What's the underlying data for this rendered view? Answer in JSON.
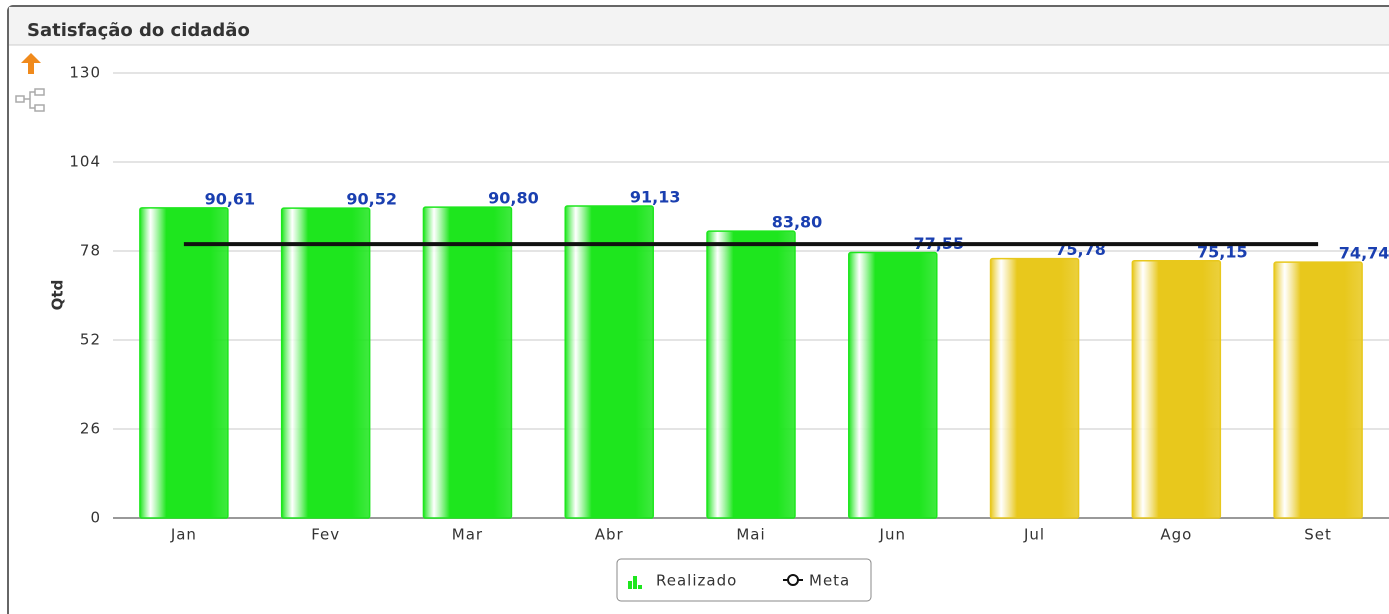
{
  "chart_data": {
    "type": "bar",
    "title": "Satisfação do cidadão",
    "y_label": "Qtd",
    "categories": [
      "Jan",
      "Fev",
      "Mar",
      "Abr",
      "Mai",
      "Jun",
      "Jul",
      "Ago",
      "Set"
    ],
    "series": [
      {
        "name": "Realizado",
        "type": "bar",
        "values": [
          90.61,
          90.52,
          90.8,
          91.13,
          83.8,
          77.55,
          75.78,
          75.15,
          74.74
        ],
        "value_labels": [
          "90,61",
          "90,52",
          "90,80",
          "91,13",
          "83,80",
          "77,55",
          "75,78",
          "75,15",
          "74,74"
        ],
        "colors": [
          "#1ee61e",
          "#1ee61e",
          "#1ee61e",
          "#1ee61e",
          "#1ee61e",
          "#1ee61e",
          "#e8c81c",
          "#e8c81c",
          "#e8c81c"
        ],
        "color": "#1ee61e"
      },
      {
        "name": "Meta",
        "type": "line",
        "color": "#111111",
        "values": [
          80,
          80,
          80,
          80,
          80,
          80,
          80,
          80,
          80
        ]
      }
    ],
    "ylim": [
      0,
      130
    ],
    "yticks": [
      0,
      26,
      52,
      78,
      104,
      130
    ],
    "grid": true,
    "legend": "bottom"
  }
}
